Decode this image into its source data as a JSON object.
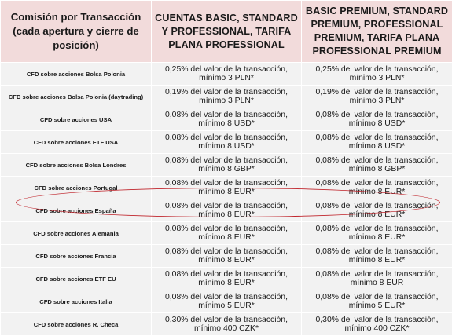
{
  "table": {
    "headers": [
      "Comisión por Transacción (cada apertura y cierre de posición)",
      "CUENTAS BASIC, STANDARD Y PROFESSIONAL, TARIFA PLANA PROFESSIONAL",
      "BASIC PREMIUM, STANDARD PREMIUM, PROFESSIONAL PREMIUM, TARIFA PLANA PROFESSIONAL PREMIUM"
    ],
    "rows": [
      {
        "name": "CFD sobre acciones Bolsa Polonia",
        "basic": "0,25% del valor de la transacción, mínimo 3 PLN*",
        "premium": "0,25% del valor de la transacción, mínimo 3 PLN*"
      },
      {
        "name": "CFD sobre acciones Bolsa Polonia (daytrading)",
        "basic": "0,19% del valor de la transacción, mínimo 3 PLN*",
        "premium": "0,19% del valor de la transacción, mínimo 3 PLN*"
      },
      {
        "name": "CFD sobre acciones USA",
        "basic": "0,08% del valor de la transacción, mínimo 8 USD*",
        "premium": "0,08% del valor de la transacción, mínimo 8 USD*"
      },
      {
        "name": "CFD sobre acciones ETF USA",
        "basic": "0,08% del valor de la transacción, mínimo 8 USD*",
        "premium": "0,08% del valor de la transacción, mínimo 8 USD*"
      },
      {
        "name": "CFD sobre acciones Bolsa Londres",
        "basic": "0,08% del valor de la transacción, mínimo 8 GBP*",
        "premium": "0,08% del valor de la transacción, mínimo 8 GBP*"
      },
      {
        "name": "CFD sobre acciones Portugal",
        "basic": "0,08% del valor de la transacción, mínimo 8 EUR*",
        "premium": "0,08% del valor de la transacción, mínimo 8 EUR*"
      },
      {
        "name": "CFD sobre acciones España",
        "basic": "0,08% del valor de la transacción, mínimo 8 EUR*",
        "premium": "0,08% del valor de la transacción, mínimo 8 EUR*"
      },
      {
        "name": "CFD sobre acciones Alemania",
        "basic": "0,08% del valor de la transacción, mínimo 8 EUR*",
        "premium": "0,08% del valor de la transacción, mínimo 8 EUR*"
      },
      {
        "name": "CFD sobre acciones Francia",
        "basic": "0,08% del valor de la transacción, mínimo 8 EUR*",
        "premium": "0,08% del valor de la transacción, mínimo 8 EUR*"
      },
      {
        "name": "CFD sobre acciones ETF EU",
        "basic": "0,08% del valor de la transacción, mínimo 8 EUR*",
        "premium": "0,08% del valor de la transacción, mínimo 8 EUR"
      },
      {
        "name": "CFD sobre acciones Italia",
        "basic": "0,08% del valor de la transacción, mínimo 5 EUR*",
        "premium": "0,08% del valor de la transacción, mínimo 5 EUR*"
      },
      {
        "name": "CFD sobre acciones R. Checa",
        "basic": "0,30% del valor de la transacción, mínimo 400 CZK*",
        "premium": "0,30% del valor de la transacción, mínimo 400 CZK*"
      }
    ]
  },
  "colors": {
    "header_bg": "#f2dbdb",
    "row_bg": "#f2f2f2",
    "highlight_oval": "#c0262d"
  }
}
